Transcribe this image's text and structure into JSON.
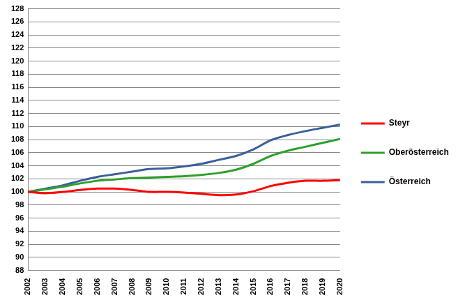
{
  "chart_data": {
    "type": "line",
    "categories": [
      "2002",
      "2003",
      "2004",
      "2005",
      "2006",
      "2007",
      "2008",
      "2009",
      "2010",
      "2011",
      "2012",
      "2013",
      "2014",
      "2015",
      "2016",
      "2017",
      "2018",
      "2019",
      "2020"
    ],
    "series": [
      {
        "name": "Steyr",
        "color": "#ff0000",
        "values": [
          100,
          99.8,
          100.0,
          100.3,
          100.5,
          100.5,
          100.3,
          100.0,
          100.0,
          99.9,
          99.7,
          99.5,
          99.6,
          100.1,
          100.9,
          101.4,
          101.7,
          101.7,
          101.8
        ]
      },
      {
        "name": "Oberösterreich",
        "color": "#2ca02c",
        "values": [
          100,
          100.4,
          100.8,
          101.3,
          101.7,
          101.9,
          102.1,
          102.2,
          102.3,
          102.4,
          102.6,
          102.9,
          103.4,
          104.3,
          105.5,
          106.3,
          106.9,
          107.5,
          108.1
        ]
      },
      {
        "name": "Österreich",
        "color": "#3a5f9a",
        "values": [
          100,
          100.5,
          101.0,
          101.7,
          102.3,
          102.7,
          103.1,
          103.5,
          103.6,
          103.9,
          104.3,
          104.9,
          105.5,
          106.5,
          107.9,
          108.7,
          109.3,
          109.8,
          110.3
        ]
      }
    ],
    "ylim": [
      88,
      128
    ],
    "yticks": [
      88,
      90,
      92,
      94,
      96,
      98,
      100,
      102,
      104,
      106,
      108,
      110,
      112,
      114,
      116,
      118,
      120,
      122,
      124,
      126,
      128
    ],
    "grid": true,
    "legend": "right"
  }
}
